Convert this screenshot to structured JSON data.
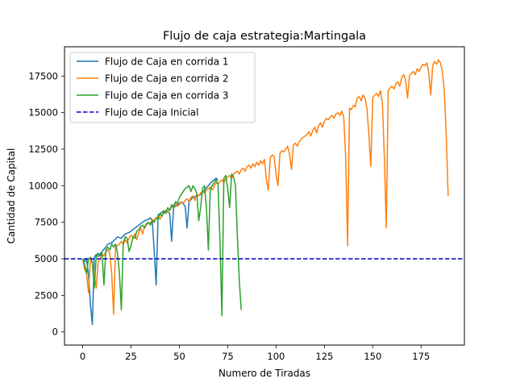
{
  "chart_data": {
    "type": "line",
    "title": "Flujo de caja estrategia:Martingala",
    "xlabel": "Numero de Tiradas",
    "ylabel": "Cantidad de Capital",
    "xlim": [
      -9.4,
      197.4
    ],
    "ylim": [
      -900,
      19500
    ],
    "xticks": [
      0,
      25,
      50,
      75,
      100,
      125,
      150,
      175
    ],
    "yticks": [
      0,
      2500,
      5000,
      7500,
      10000,
      12500,
      15000,
      17500
    ],
    "grid": false,
    "legend_position": "top-left",
    "series": [
      {
        "name": "Flujo de Caja en corrida 1",
        "color": "#1f77b4",
        "style": "solid",
        "points": [
          [
            0,
            5000
          ],
          [
            1,
            4800
          ],
          [
            2,
            5000
          ],
          [
            3,
            3900
          ],
          [
            4,
            1900
          ],
          [
            5,
            500
          ],
          [
            6,
            5100
          ],
          [
            7,
            5300
          ],
          [
            8,
            5150
          ],
          [
            10,
            5500
          ],
          [
            12,
            5800
          ],
          [
            13,
            6000
          ],
          [
            15,
            6100
          ],
          [
            17,
            6350
          ],
          [
            18,
            6500
          ],
          [
            20,
            6400
          ],
          [
            22,
            6700
          ],
          [
            24,
            6800
          ],
          [
            26,
            7000
          ],
          [
            28,
            7200
          ],
          [
            30,
            7400
          ],
          [
            32,
            7600
          ],
          [
            34,
            7700
          ],
          [
            35,
            7800
          ],
          [
            36,
            7600
          ],
          [
            37,
            5500
          ],
          [
            38,
            3200
          ],
          [
            39,
            8000
          ],
          [
            41,
            8200
          ],
          [
            43,
            8300
          ],
          [
            45,
            8100
          ],
          [
            46,
            6200
          ],
          [
            47,
            8500
          ],
          [
            49,
            8700
          ],
          [
            51,
            8900
          ],
          [
            53,
            8600
          ],
          [
            54,
            7100
          ],
          [
            55,
            8900
          ],
          [
            57,
            9200
          ],
          [
            59,
            9300
          ],
          [
            61,
            9400
          ],
          [
            63,
            9700
          ],
          [
            65,
            10000
          ],
          [
            67,
            10300
          ],
          [
            69,
            10500
          ],
          [
            70,
            10400
          ]
        ]
      },
      {
        "name": "Flujo de Caja en corrida 2",
        "color": "#ff7f0e",
        "style": "solid",
        "points": [
          [
            0,
            5000
          ],
          [
            1,
            4300
          ],
          [
            2,
            4000
          ],
          [
            3,
            2700
          ],
          [
            4,
            5000
          ],
          [
            5,
            4700
          ],
          [
            7,
            3000
          ],
          [
            8,
            4800
          ],
          [
            9,
            5000
          ],
          [
            10,
            5300
          ],
          [
            11,
            5200
          ],
          [
            12,
            5500
          ],
          [
            13,
            5600
          ],
          [
            14,
            5400
          ],
          [
            15,
            4000
          ],
          [
            16,
            1200
          ],
          [
            17,
            5800
          ],
          [
            19,
            6000
          ],
          [
            20,
            6200
          ],
          [
            21,
            6000
          ],
          [
            22,
            6300
          ],
          [
            23,
            6100
          ],
          [
            24,
            6400
          ],
          [
            25,
            6600
          ],
          [
            26,
            6500
          ],
          [
            27,
            6700
          ],
          [
            28,
            6300
          ],
          [
            29,
            6800
          ],
          [
            30,
            7100
          ],
          [
            31,
            6700
          ],
          [
            32,
            7200
          ],
          [
            33,
            7300
          ],
          [
            34,
            7500
          ],
          [
            35,
            7400
          ],
          [
            36,
            7700
          ],
          [
            37,
            7600
          ],
          [
            38,
            7800
          ],
          [
            39,
            7900
          ],
          [
            40,
            7700
          ],
          [
            41,
            8000
          ],
          [
            42,
            8100
          ],
          [
            43,
            8300
          ],
          [
            44,
            8200
          ],
          [
            45,
            8400
          ],
          [
            46,
            8500
          ],
          [
            47,
            8700
          ],
          [
            48,
            8800
          ],
          [
            49,
            8600
          ],
          [
            50,
            8700
          ],
          [
            51,
            8900
          ],
          [
            52,
            8800
          ],
          [
            53,
            9000
          ],
          [
            54,
            9100
          ],
          [
            55,
            8900
          ],
          [
            56,
            9200
          ],
          [
            57,
            9300
          ],
          [
            58,
            9000
          ],
          [
            59,
            9400
          ],
          [
            60,
            9300
          ],
          [
            61,
            9500
          ],
          [
            62,
            9600
          ],
          [
            63,
            9500
          ],
          [
            64,
            9700
          ],
          [
            65,
            9800
          ],
          [
            66,
            9900
          ],
          [
            67,
            9700
          ],
          [
            68,
            10000
          ],
          [
            69,
            10200
          ],
          [
            70,
            10100
          ],
          [
            71,
            10300
          ],
          [
            72,
            10400
          ],
          [
            73,
            10200
          ],
          [
            74,
            10500
          ],
          [
            75,
            10600
          ],
          [
            76,
            10700
          ],
          [
            77,
            10500
          ],
          [
            78,
            10800
          ],
          [
            79,
            10900
          ],
          [
            80,
            11000
          ],
          [
            81,
            10800
          ],
          [
            82,
            11100
          ],
          [
            83,
            11200
          ],
          [
            84,
            11000
          ],
          [
            85,
            11300
          ],
          [
            86,
            11400
          ],
          [
            87,
            11200
          ],
          [
            88,
            11500
          ],
          [
            89,
            11300
          ],
          [
            90,
            11600
          ],
          [
            91,
            11400
          ],
          [
            92,
            11700
          ],
          [
            93,
            11500
          ],
          [
            94,
            11800
          ],
          [
            95,
            10400
          ],
          [
            96,
            9700
          ],
          [
            97,
            11900
          ],
          [
            98,
            12100
          ],
          [
            99,
            12000
          ],
          [
            100,
            10800
          ],
          [
            101,
            10000
          ],
          [
            102,
            12200
          ],
          [
            103,
            12400
          ],
          [
            104,
            12300
          ],
          [
            105,
            12500
          ],
          [
            106,
            12700
          ],
          [
            107,
            12100
          ],
          [
            108,
            11100
          ],
          [
            109,
            12800
          ],
          [
            110,
            12900
          ],
          [
            111,
            12700
          ],
          [
            112,
            13000
          ],
          [
            113,
            13200
          ],
          [
            114,
            13300
          ],
          [
            115,
            13400
          ],
          [
            116,
            13500
          ],
          [
            117,
            13700
          ],
          [
            118,
            13400
          ],
          [
            119,
            13800
          ],
          [
            120,
            14000
          ],
          [
            121,
            13600
          ],
          [
            122,
            14100
          ],
          [
            123,
            14300
          ],
          [
            124,
            14000
          ],
          [
            125,
            14400
          ],
          [
            126,
            14600
          ],
          [
            127,
            14500
          ],
          [
            128,
            14700
          ],
          [
            129,
            14800
          ],
          [
            130,
            14600
          ],
          [
            131,
            14900
          ],
          [
            132,
            15000
          ],
          [
            133,
            14800
          ],
          [
            134,
            15100
          ],
          [
            135,
            14700
          ],
          [
            136,
            12000
          ],
          [
            137,
            5900
          ],
          [
            138,
            15300
          ],
          [
            139,
            15200
          ],
          [
            140,
            15500
          ],
          [
            141,
            15400
          ],
          [
            142,
            16000
          ],
          [
            143,
            16100
          ],
          [
            144,
            15800
          ],
          [
            145,
            16200
          ],
          [
            146,
            16000
          ],
          [
            147,
            15300
          ],
          [
            148,
            13500
          ],
          [
            149,
            11300
          ],
          [
            150,
            16000
          ],
          [
            151,
            16200
          ],
          [
            152,
            16300
          ],
          [
            153,
            16100
          ],
          [
            154,
            16500
          ],
          [
            155,
            15600
          ],
          [
            156,
            12000
          ],
          [
            157,
            7100
          ],
          [
            158,
            16500
          ],
          [
            159,
            16700
          ],
          [
            160,
            16800
          ],
          [
            161,
            16600
          ],
          [
            162,
            17000
          ],
          [
            163,
            17100
          ],
          [
            164,
            16800
          ],
          [
            165,
            17400
          ],
          [
            166,
            17600
          ],
          [
            167,
            17200
          ],
          [
            168,
            16000
          ],
          [
            169,
            17500
          ],
          [
            170,
            17700
          ],
          [
            171,
            17800
          ],
          [
            172,
            17600
          ],
          [
            173,
            18000
          ],
          [
            174,
            17800
          ],
          [
            175,
            18100
          ],
          [
            176,
            18300
          ],
          [
            177,
            18200
          ],
          [
            178,
            18400
          ],
          [
            179,
            17700
          ],
          [
            180,
            16200
          ],
          [
            181,
            18200
          ],
          [
            182,
            18500
          ],
          [
            183,
            18300
          ],
          [
            184,
            18600
          ],
          [
            185,
            18400
          ],
          [
            186,
            17800
          ],
          [
            187,
            16500
          ],
          [
            188,
            13500
          ],
          [
            189,
            9300
          ]
        ]
      },
      {
        "name": "Flujo de Caja en corrida 3",
        "color": "#2ca02c",
        "style": "solid",
        "points": [
          [
            0,
            5000
          ],
          [
            1,
            4600
          ],
          [
            2,
            4000
          ],
          [
            3,
            5000
          ],
          [
            4,
            5100
          ],
          [
            5,
            4800
          ],
          [
            6,
            3000
          ],
          [
            7,
            5200
          ],
          [
            8,
            5400
          ],
          [
            9,
            5200
          ],
          [
            10,
            5400
          ],
          [
            11,
            3200
          ],
          [
            12,
            5600
          ],
          [
            13,
            5800
          ],
          [
            14,
            5600
          ],
          [
            15,
            6000
          ],
          [
            16,
            5800
          ],
          [
            17,
            6000
          ],
          [
            18,
            5400
          ],
          [
            19,
            4000
          ],
          [
            20,
            1500
          ],
          [
            21,
            6100
          ],
          [
            22,
            6500
          ],
          [
            23,
            6400
          ],
          [
            24,
            5500
          ],
          [
            25,
            5900
          ],
          [
            26,
            6500
          ],
          [
            27,
            6400
          ],
          [
            28,
            6900
          ],
          [
            29,
            7000
          ],
          [
            30,
            7200
          ],
          [
            31,
            7300
          ],
          [
            32,
            7100
          ],
          [
            33,
            7400
          ],
          [
            34,
            7500
          ],
          [
            35,
            7300
          ],
          [
            36,
            7600
          ],
          [
            37,
            7500
          ],
          [
            38,
            7800
          ],
          [
            39,
            7700
          ],
          [
            40,
            8100
          ],
          [
            41,
            7900
          ],
          [
            42,
            8300
          ],
          [
            43,
            8100
          ],
          [
            44,
            8500
          ],
          [
            45,
            8300
          ],
          [
            46,
            8700
          ],
          [
            47,
            8500
          ],
          [
            48,
            8900
          ],
          [
            49,
            8800
          ],
          [
            50,
            9200
          ],
          [
            51,
            9400
          ],
          [
            52,
            9600
          ],
          [
            53,
            9800
          ],
          [
            54,
            9900
          ],
          [
            55,
            10000
          ],
          [
            56,
            9600
          ],
          [
            57,
            10000
          ],
          [
            58,
            9800
          ],
          [
            59,
            9500
          ],
          [
            60,
            7600
          ],
          [
            61,
            8500
          ],
          [
            62,
            9800
          ],
          [
            63,
            10000
          ],
          [
            64,
            8500
          ],
          [
            65,
            5600
          ],
          [
            66,
            9800
          ],
          [
            67,
            10000
          ],
          [
            68,
            10200
          ],
          [
            69,
            10400
          ],
          [
            70,
            10100
          ],
          [
            71,
            6200
          ],
          [
            72,
            1100
          ],
          [
            73,
            10500
          ],
          [
            74,
            10700
          ],
          [
            75,
            9800
          ],
          [
            76,
            8500
          ],
          [
            77,
            10800
          ],
          [
            78,
            10600
          ],
          [
            79,
            10000
          ],
          [
            80,
            6500
          ],
          [
            81,
            3500
          ],
          [
            82,
            1500
          ]
        ]
      },
      {
        "name": "Flujo de Caja Inicial",
        "color": "#0000cc",
        "style": "dashed",
        "hline": 5000
      }
    ]
  }
}
